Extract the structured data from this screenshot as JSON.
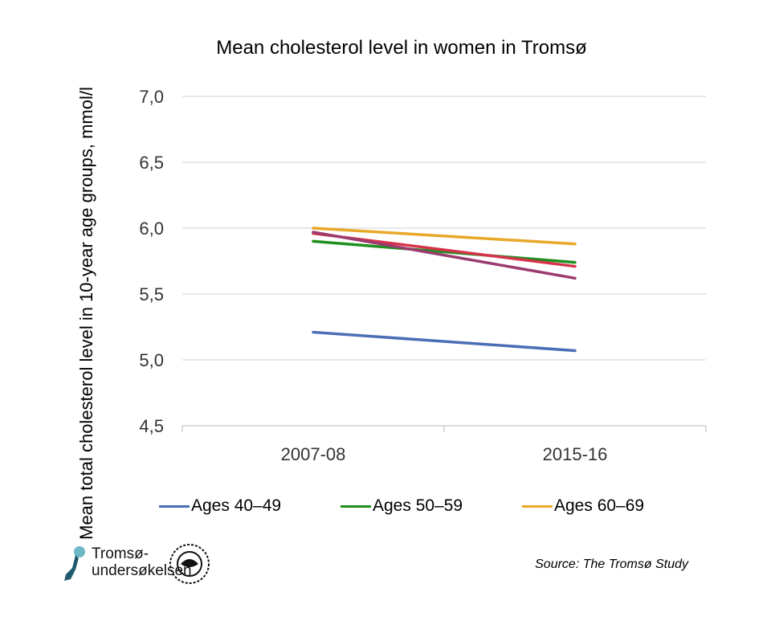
{
  "chart_data": {
    "type": "line",
    "title": "Mean cholesterol level in women in Tromsø",
    "ylabel": "Mean total cholesterol level in 10-year age groups, mmol/l",
    "xlabel": "",
    "categories": [
      "2007-08",
      "2015-16"
    ],
    "ylim": [
      4.5,
      7.0
    ],
    "yticks": [
      "4,5",
      "5,0",
      "5,5",
      "6,0",
      "6,5",
      "7,0"
    ],
    "ytick_values": [
      4.5,
      5.0,
      5.5,
      6.0,
      6.5,
      7.0
    ],
    "grid": true,
    "legend": "bottom",
    "series": [
      {
        "name": "Ages 40–49",
        "values": [
          5.21,
          5.07
        ],
        "color": "#4a6eb5",
        "in_legend": true
      },
      {
        "name": "Ages 50–59",
        "values": [
          5.9,
          5.74
        ],
        "color": "#1e8f1e",
        "in_legend": true
      },
      {
        "name": "Ages 60–69",
        "values": [
          6.0,
          5.88
        ],
        "color": "#e8a82a",
        "in_legend": true
      },
      {
        "values": [
          5.96,
          5.71
        ],
        "color": "#d6334a",
        "in_legend": false
      },
      {
        "values": [
          5.97,
          5.62
        ],
        "color": "#9b3b6f",
        "in_legend": false
      }
    ]
  },
  "source": "Source: The Tromsø Study",
  "logo": {
    "line1": "Tromsø-",
    "line2": "undersøkelsen",
    "seal": "Universitetet i Tromsø"
  }
}
